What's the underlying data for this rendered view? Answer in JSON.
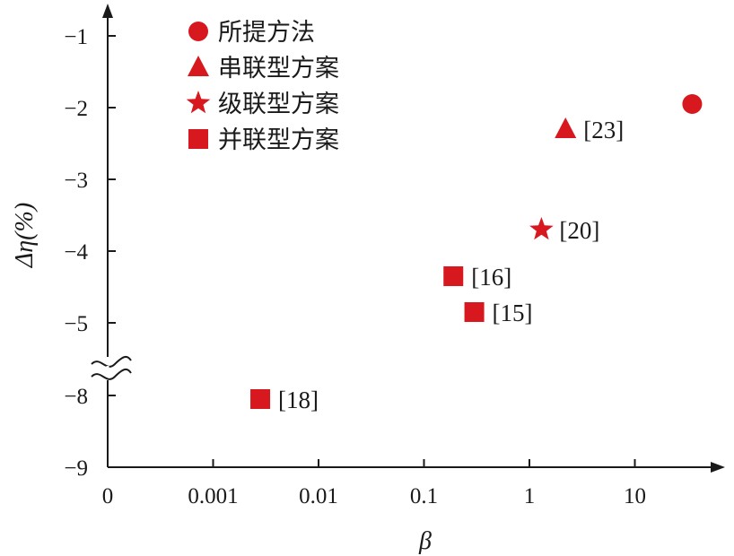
{
  "chart_data": {
    "type": "scatter",
    "title": "",
    "xlabel": "β",
    "ylabel": "Δη(%)",
    "x_tick_labels": [
      "0",
      "0.001",
      "0.01",
      "0.1",
      "1",
      "10"
    ],
    "y_tick_labels": [
      "−1",
      "−2",
      "−3",
      "−4",
      "−5",
      "−8",
      "−9"
    ],
    "x_scale": "log with zero origin",
    "y_axis_break": {
      "between": [
        -8,
        -5
      ]
    },
    "grid": false,
    "legend_position": "top-left",
    "color": "#d7191f",
    "series": [
      {
        "name": "所提方法",
        "marker": "circle",
        "points": [
          {
            "x": 35,
            "y": -1.95,
            "ref": ""
          }
        ]
      },
      {
        "name": "串联型方案",
        "marker": "triangle",
        "points": [
          {
            "x": 2.2,
            "y": -2.3,
            "ref": "[23]"
          }
        ]
      },
      {
        "name": "级联型方案",
        "marker": "star",
        "points": [
          {
            "x": 1.3,
            "y": -3.7,
            "ref": "[20]"
          }
        ]
      },
      {
        "name": "并联型方案",
        "marker": "square",
        "points": [
          {
            "x": 0.19,
            "y": -4.35,
            "ref": "[16]"
          },
          {
            "x": 0.3,
            "y": -4.85,
            "ref": "[15]"
          },
          {
            "x": 0.0028,
            "y": -8.05,
            "ref": "[18]"
          }
        ]
      }
    ]
  }
}
